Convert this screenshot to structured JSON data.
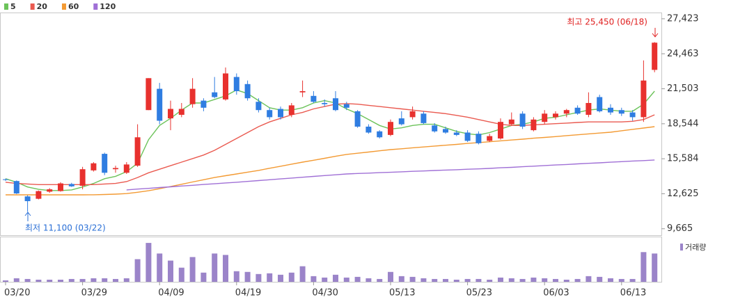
{
  "chart_data": {
    "type": "candlestick",
    "categories": [
      "03/20",
      null,
      null,
      null,
      null,
      null,
      null,
      "03/29",
      null,
      null,
      null,
      null,
      null,
      null,
      "04/09",
      null,
      null,
      null,
      null,
      null,
      null,
      "04/19",
      null,
      null,
      null,
      null,
      null,
      null,
      "04/30",
      null,
      null,
      null,
      null,
      null,
      null,
      "05/13",
      null,
      null,
      null,
      null,
      null,
      null,
      "05/23",
      null,
      null,
      null,
      null,
      null,
      null,
      "06/03",
      null,
      null,
      null,
      null,
      null,
      null,
      "06/13",
      null,
      null,
      null
    ],
    "open": [
      13850,
      13700,
      12400,
      12200,
      12800,
      12850,
      13450,
      13300,
      14600,
      16000,
      14700,
      14400,
      15000,
      19700,
      21500,
      19000,
      19300,
      20200,
      20500,
      21200,
      20600,
      22500,
      21900,
      20400,
      19700,
      19800,
      19300,
      21200,
      20900,
      20300,
      20700,
      20200,
      19600,
      18300,
      17900,
      17600,
      19000,
      19100,
      19400,
      18400,
      18100,
      17800,
      17800,
      17700,
      17100,
      17300,
      18500,
      19400,
      18000,
      18700,
      19100,
      19400,
      19900,
      19300,
      20800,
      19900,
      19700,
      19500,
      19100,
      23100
    ],
    "high": [
      13900,
      13750,
      12500,
      12900,
      13100,
      13600,
      13550,
      14900,
      15300,
      16100,
      15000,
      15300,
      18500,
      22400,
      22000,
      20500,
      20300,
      22400,
      20700,
      22500,
      23300,
      22800,
      22200,
      20700,
      19900,
      20000,
      20300,
      22200,
      21300,
      20600,
      21300,
      20400,
      19700,
      18500,
      18000,
      18900,
      19600,
      20000,
      19600,
      18600,
      18300,
      18000,
      18000,
      17900,
      17700,
      19000,
      19500,
      19600,
      19100,
      19700,
      19600,
      19800,
      20100,
      21200,
      21000,
      20200,
      19900,
      19700,
      23900,
      25450
    ],
    "low": [
      13700,
      12600,
      11100,
      12150,
      12700,
      12800,
      13200,
      13000,
      14500,
      14200,
      14400,
      14300,
      14900,
      19700,
      18500,
      18000,
      19100,
      19900,
      19600,
      20700,
      20500,
      21000,
      20500,
      19500,
      18900,
      18900,
      19100,
      20800,
      20300,
      20000,
      19600,
      19700,
      18200,
      17700,
      17300,
      17500,
      18400,
      18900,
      18500,
      17800,
      17700,
      17500,
      17000,
      16800,
      17000,
      17200,
      18400,
      18100,
      17900,
      18500,
      18900,
      19100,
      19300,
      19100,
      19500,
      19300,
      19200,
      18800,
      18700,
      22900
    ],
    "close": [
      13800,
      12650,
      12000,
      12850,
      13000,
      13500,
      13250,
      14700,
      15200,
      14400,
      14800,
      15100,
      17400,
      22400,
      18800,
      19800,
      19800,
      21500,
      19900,
      20800,
      22800,
      21300,
      20700,
      19700,
      19100,
      19100,
      20100,
      21300,
      20400,
      20200,
      19700,
      19900,
      18300,
      17800,
      17400,
      18700,
      18500,
      19600,
      18600,
      17900,
      17800,
      17600,
      17100,
      16900,
      17500,
      18700,
      18900,
      18300,
      18900,
      19400,
      19400,
      19700,
      19400,
      20300,
      19600,
      19500,
      19400,
      19100,
      22200,
      25400
    ],
    "up_color": "#e8312e",
    "down_color": "#2f7de1",
    "moving_averages": [
      {
        "name": "5",
        "color": "#6cc35a",
        "values": [
          13900,
          13600,
          13200,
          13000,
          12900,
          12900,
          12950,
          13200,
          13500,
          13900,
          14100,
          14500,
          15200,
          17200,
          18400,
          19000,
          19700,
          20300,
          20300,
          20600,
          20900,
          21400,
          21100,
          20500,
          19900,
          19700,
          19700,
          19900,
          20300,
          20500,
          20300,
          19800,
          19400,
          18900,
          18400,
          18100,
          18200,
          18400,
          18500,
          18500,
          18200,
          17900,
          17700,
          17600,
          17800,
          18100,
          18400,
          18500,
          18700,
          19000,
          19100,
          19300,
          19500,
          19700,
          19800,
          19700,
          19600,
          19600,
          20200,
          21300
        ]
      },
      {
        "name": "20",
        "color": "#ea5a50",
        "values": [
          13600,
          13500,
          13450,
          13400,
          13400,
          13400,
          13400,
          13400,
          13400,
          13450,
          13500,
          13650,
          14000,
          14400,
          14700,
          15000,
          15300,
          15600,
          15900,
          16300,
          16800,
          17300,
          17800,
          18300,
          18700,
          19000,
          19300,
          19500,
          19800,
          20000,
          20200,
          20250,
          20200,
          20100,
          20000,
          19900,
          19800,
          19700,
          19600,
          19500,
          19400,
          19250,
          19100,
          18900,
          18700,
          18500,
          18400,
          18400,
          18450,
          18500,
          18550,
          18600,
          18650,
          18700,
          18700,
          18700,
          18700,
          18750,
          18900,
          19300
        ]
      },
      {
        "name": "60",
        "color": "#f39a33",
        "values": [
          12530,
          12530,
          12530,
          12530,
          12530,
          12530,
          12530,
          12530,
          12540,
          12560,
          12590,
          12640,
          12750,
          12880,
          13050,
          13240,
          13430,
          13620,
          13810,
          14000,
          14150,
          14300,
          14450,
          14600,
          14780,
          14950,
          15130,
          15300,
          15460,
          15620,
          15790,
          15950,
          16050,
          16150,
          16260,
          16360,
          16430,
          16510,
          16580,
          16660,
          16730,
          16800,
          16880,
          16950,
          17020,
          17100,
          17170,
          17240,
          17320,
          17390,
          17460,
          17540,
          17610,
          17690,
          17760,
          17830,
          17950,
          18070,
          18180,
          18300
        ]
      },
      {
        "name": "120",
        "color": "#a070d6",
        "values": [
          null,
          null,
          null,
          null,
          null,
          null,
          null,
          null,
          null,
          null,
          null,
          12950,
          13020,
          13080,
          13150,
          13210,
          13280,
          13340,
          13410,
          13470,
          13540,
          13600,
          13670,
          13740,
          13810,
          13880,
          13950,
          14020,
          14090,
          14160,
          14230,
          14300,
          14340,
          14370,
          14410,
          14440,
          14480,
          14520,
          14550,
          14590,
          14630,
          14660,
          14700,
          14730,
          14770,
          14820,
          14860,
          14910,
          14960,
          15010,
          15060,
          15100,
          15150,
          15200,
          15240,
          15290,
          15340,
          15390,
          15430,
          15480
        ]
      }
    ],
    "volume": {
      "name": "거래량",
      "color": "#9b84c9",
      "ylim": [
        0,
        60
      ],
      "values": [
        2,
        5,
        4,
        3,
        3,
        3,
        4,
        4,
        5,
        5,
        4,
        5,
        32,
        55,
        40,
        30,
        20,
        35,
        13,
        40,
        38,
        15,
        14,
        11,
        12,
        10,
        13,
        22,
        8,
        6,
        10,
        6,
        7,
        5,
        4,
        14,
        8,
        7,
        5,
        4,
        4,
        3,
        4,
        4,
        3,
        6,
        5,
        4,
        6,
        5,
        4,
        3,
        4,
        8,
        7,
        5,
        4,
        4,
        42,
        40
      ]
    },
    "ylim": [
      9120,
      27950
    ],
    "yticks": [
      {
        "value": 9665,
        "label": "9,665"
      },
      {
        "value": 12625,
        "label": "12,625"
      },
      {
        "value": 15584,
        "label": "15,584"
      },
      {
        "value": 18544,
        "label": "18,544"
      },
      {
        "value": 21503,
        "label": "21,503"
      },
      {
        "value": 24463,
        "label": "24,463"
      },
      {
        "value": 27423,
        "label": "27,423"
      }
    ],
    "high_label": "최고 25,450 (06/18)",
    "low_label": "최저 11,100 (03/22)"
  }
}
